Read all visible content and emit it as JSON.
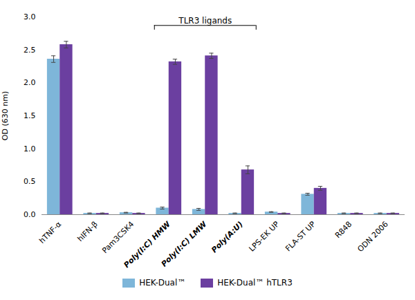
{
  "chart_data": {
    "type": "bar",
    "categories": [
      "hTNF-α",
      "hIFN-β",
      "Pam3CSK4",
      "Poly(I:C) HMW",
      "Poly(I:C) LMW",
      "Poly(A:U)",
      "LPS-EK UP",
      "FLA-ST UP",
      "R848",
      "ODN 2006"
    ],
    "series": [
      {
        "name": "HEK-Dual™",
        "color": "#7EB6D9",
        "values": [
          2.36,
          0.02,
          0.03,
          0.1,
          0.08,
          0.02,
          0.04,
          0.31,
          0.02,
          0.02
        ],
        "errors": [
          0.05,
          0.005,
          0.005,
          0.015,
          0.015,
          0.005,
          0.005,
          0.015,
          0.005,
          0.005
        ]
      },
      {
        "name": "HEK-Dual™ hTLR3",
        "color": "#6B3FA0",
        "values": [
          2.58,
          0.02,
          0.02,
          2.32,
          2.41,
          0.68,
          0.02,
          0.4,
          0.02,
          0.02
        ],
        "errors": [
          0.05,
          0.005,
          0.005,
          0.04,
          0.04,
          0.06,
          0.005,
          0.03,
          0.005,
          0.005
        ]
      }
    ],
    "ylabel": "OD (630 nm)",
    "ylim": [
      0,
      3.0
    ],
    "yticks": [
      {
        "value": 0,
        "label": "0.0"
      },
      0.5,
      {
        "value": 1,
        "label": "1.0"
      },
      1.5,
      {
        "value": 2,
        "label": "2.0"
      },
      2.5,
      {
        "value": 3,
        "label": "3.0"
      }
    ],
    "annotations": [
      {
        "text": "TLR3 ligands",
        "categories": [
          "Poly(I:C) HMW",
          "Poly(I:C) LMW",
          "Poly(A:U)"
        ]
      }
    ],
    "grid": false,
    "legend": "bottom"
  }
}
